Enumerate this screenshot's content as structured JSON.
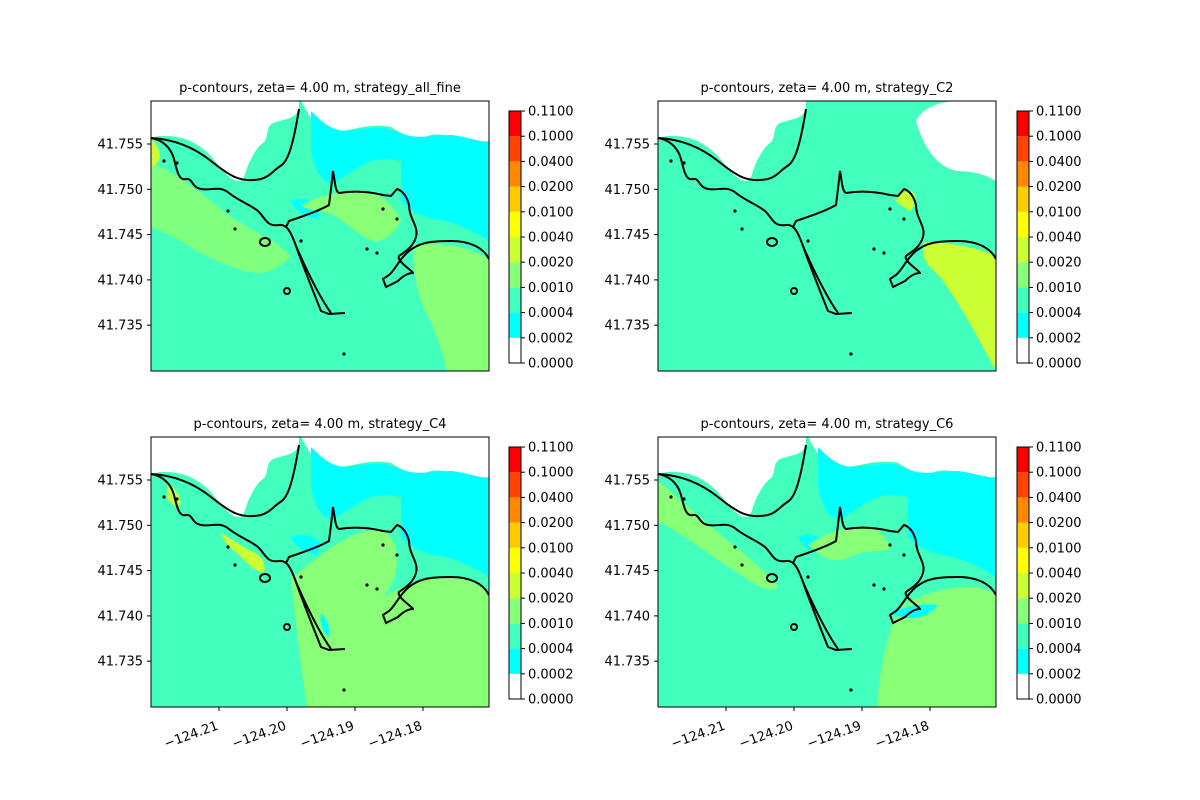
{
  "colors": {
    "levels": [
      "#ffffff",
      "#00ffff",
      "#43ffbd",
      "#88ff77",
      "#ccff33",
      "#ffff00",
      "#ffcc00",
      "#ff8800",
      "#ff4400",
      "#ff0000"
    ],
    "coast": "#000000",
    "axis": "#000000"
  },
  "chart_data": [
    {
      "type": "heatmap",
      "title": "p-contours, zeta= 4.00 m, strategy_all_fine",
      "colorbar_ticks": [
        "0.0000",
        "0.0002",
        "0.0004",
        "0.0010",
        "0.0020",
        "0.0040",
        "0.0100",
        "0.0200",
        "0.0400",
        "0.1000",
        "0.1100"
      ],
      "y_ticks": [
        "41.755",
        "41.750",
        "41.745",
        "41.740",
        "41.735"
      ],
      "x_ticks": [],
      "dominant_level": "0.0004-0.0010",
      "secondary_level": "0.0010-0.0020"
    },
    {
      "type": "heatmap",
      "title": "p-contours, zeta= 4.00 m, strategy_C2",
      "colorbar_ticks": [
        "0.0000",
        "0.0002",
        "0.0004",
        "0.0010",
        "0.0020",
        "0.0040",
        "0.0100",
        "0.0200",
        "0.0400",
        "0.1000",
        "0.1100"
      ],
      "y_ticks": [
        "41.755",
        "41.750",
        "41.745",
        "41.740",
        "41.735"
      ],
      "x_ticks": [],
      "dominant_level": "0.0004-0.0010",
      "secondary_level": "0.0020-0.0040"
    },
    {
      "type": "heatmap",
      "title": "p-contours, zeta= 4.00 m, strategy_C4",
      "colorbar_ticks": [
        "0.0000",
        "0.0002",
        "0.0004",
        "0.0010",
        "0.0020",
        "0.0040",
        "0.0100",
        "0.0200",
        "0.0400",
        "0.1000",
        "0.1100"
      ],
      "y_ticks": [
        "41.755",
        "41.750",
        "41.745",
        "41.740",
        "41.735"
      ],
      "x_ticks": [
        "−124.21",
        "−124.20",
        "−124.19",
        "−124.18"
      ],
      "dominant_level": "0.0004-0.0010",
      "secondary_level": "0.0010-0.0020"
    },
    {
      "type": "heatmap",
      "title": "p-contours, zeta= 4.00 m, strategy_C6",
      "colorbar_ticks": [
        "0.0000",
        "0.0002",
        "0.0004",
        "0.0010",
        "0.0020",
        "0.0040",
        "0.0100",
        "0.0200",
        "0.0400",
        "0.1000",
        "0.1100"
      ],
      "y_ticks": [
        "41.755",
        "41.750",
        "41.745",
        "41.740",
        "41.735"
      ],
      "x_ticks": [
        "−124.21",
        "−124.20",
        "−124.19",
        "−124.18"
      ],
      "dominant_level": "0.0004-0.0010",
      "secondary_level": "0.0010-0.0020"
    }
  ]
}
